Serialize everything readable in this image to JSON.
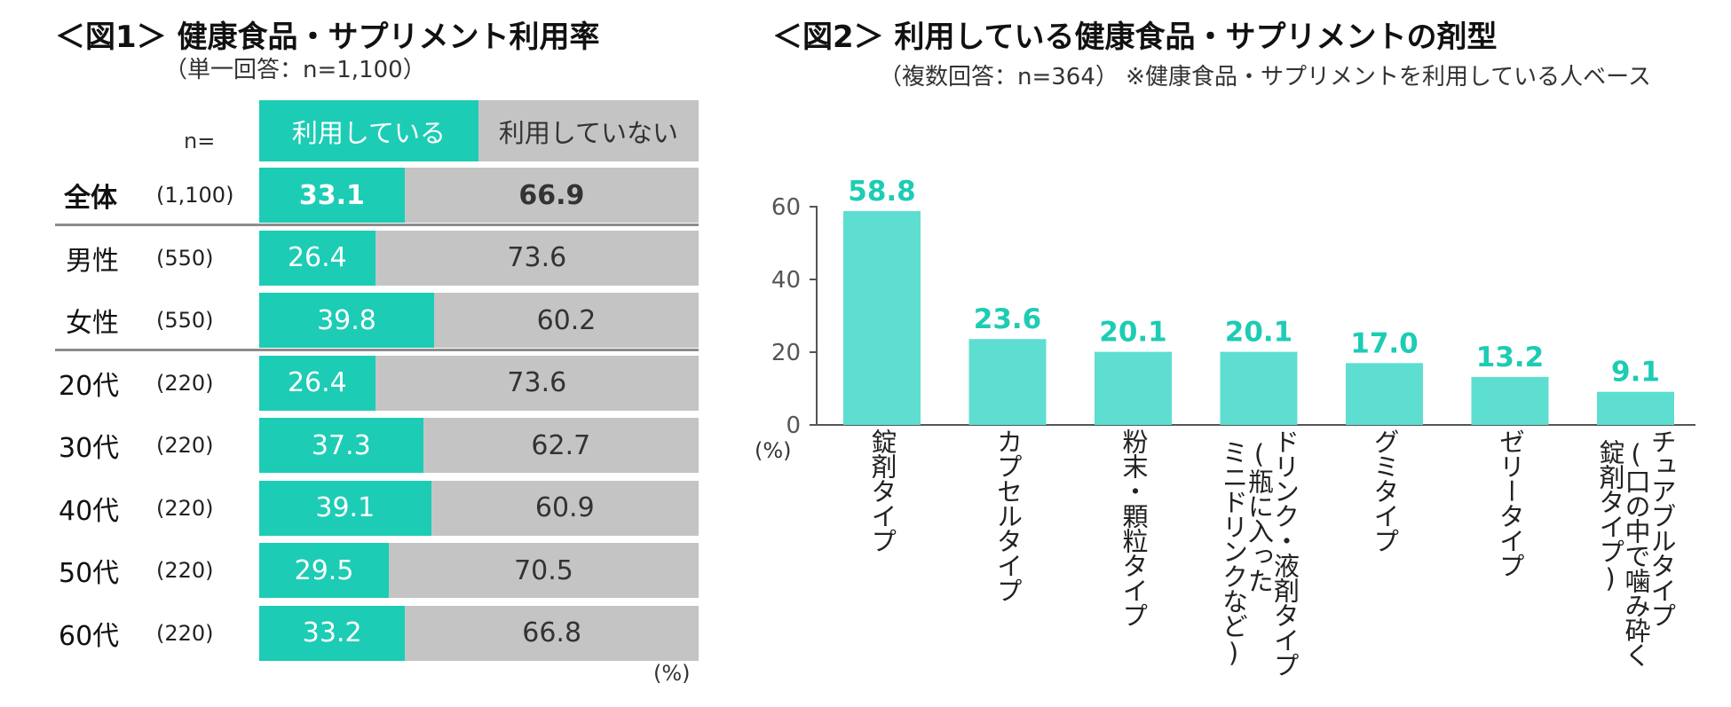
{
  "fig1": {
    "title": "＜図1＞ 健康食品・サプリメント利用率",
    "subtitle": "（単一回答：n=1,100）",
    "n_label": "n=",
    "unit": "(%)",
    "colors": {
      "use": "#1dccb4",
      "nouse": "#c4c4c4"
    },
    "chart_data": {
      "type": "bar",
      "stacked": true,
      "orientation": "horizontal",
      "categories": [
        "全体",
        "男性",
        "女性",
        "20代",
        "30代",
        "40代",
        "50代",
        "60代"
      ],
      "n": [
        "(1,100)",
        "(550)",
        "(550)",
        "(220)",
        "(220)",
        "(220)",
        "(220)",
        "(220)"
      ],
      "series": [
        {
          "name": "利用している",
          "values": [
            "33.1",
            "26.4",
            "39.8",
            "26.4",
            "37.3",
            "39.1",
            "29.5",
            "33.2"
          ]
        },
        {
          "name": "利用していない",
          "values": [
            "66.9",
            "73.6",
            "60.2",
            "73.6",
            "62.7",
            "60.9",
            "70.5",
            "66.8"
          ]
        }
      ],
      "xlim": [
        0,
        100
      ]
    }
  },
  "fig2": {
    "title": "＜図2＞ 利用している健康食品・サプリメントの剤型",
    "subtitle": "（複数回答：n=364） ※健康食品・サプリメントを利用している人ベース",
    "unit": "(%)",
    "colors": {
      "bar": "#5eded0",
      "label": "#1dccb4",
      "axis": "#555555"
    },
    "chart_data": {
      "type": "bar",
      "categories": [
        [
          "錠剤タイプ"
        ],
        [
          "カプセルタイプ"
        ],
        [
          "粉末・顆粒タイプ"
        ],
        [
          "ドリンク・液剤タイプ",
          "(瓶に入った",
          "ミニドリンクなど)"
        ],
        [
          "グミタイプ"
        ],
        [
          "ゼリータイプ"
        ],
        [
          "チュアブルタイプ",
          "(口の中で噛み砕く",
          "錠剤タイプ)"
        ]
      ],
      "values": [
        "58.8",
        "23.6",
        "20.1",
        "20.1",
        "17.0",
        "13.2",
        "9.1"
      ],
      "ylim": [
        0,
        60
      ],
      "yticks": [
        "0",
        "20",
        "40",
        "60"
      ]
    }
  }
}
